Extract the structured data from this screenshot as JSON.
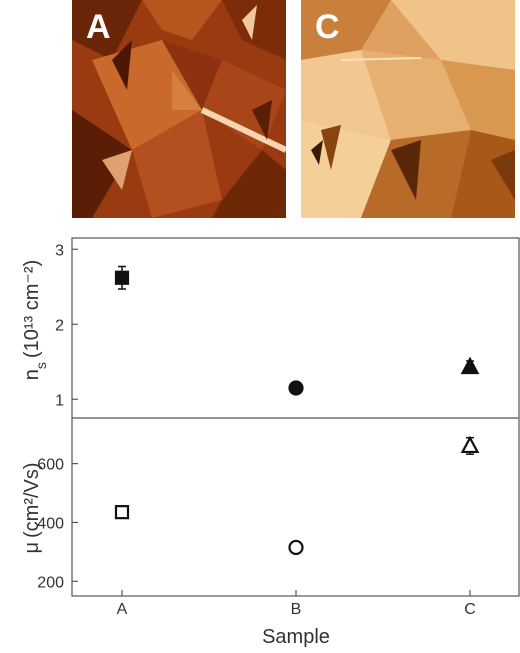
{
  "images": [
    {
      "label": "A"
    },
    {
      "label": "C"
    }
  ],
  "chart_data": [
    {
      "type": "scatter",
      "title": "",
      "xlabel": "Sample",
      "ylabel_main": "n",
      "ylabel_sub": "s",
      "ylabel_unit": "(10¹³ cm⁻²)",
      "categories": [
        "A",
        "B",
        "C"
      ],
      "ylim": [
        0.75,
        3.15
      ],
      "yticks": [
        1,
        2,
        3
      ],
      "series": [
        {
          "marker": "filled",
          "points": [
            {
              "x": "A",
              "y": 2.62,
              "err": 0.15,
              "shape": "square"
            },
            {
              "x": "B",
              "y": 1.15,
              "err": 0.04,
              "shape": "circle"
            },
            {
              "x": "C",
              "y": 1.43,
              "err": 0.08,
              "shape": "triangle"
            }
          ]
        }
      ]
    },
    {
      "type": "scatter",
      "title": "",
      "xlabel": "Sample",
      "ylabel_main": "μ",
      "ylabel_unit": "(cm²/Vs)",
      "categories": [
        "A",
        "B",
        "C"
      ],
      "ylim": [
        150,
        755
      ],
      "yticks": [
        200,
        400,
        600
      ],
      "series": [
        {
          "marker": "open",
          "points": [
            {
              "x": "A",
              "y": 435,
              "err": 8,
              "shape": "square"
            },
            {
              "x": "B",
              "y": 315,
              "err": 6,
              "shape": "circle"
            },
            {
              "x": "C",
              "y": 660,
              "err": 28,
              "shape": "triangle"
            }
          ]
        }
      ]
    }
  ]
}
